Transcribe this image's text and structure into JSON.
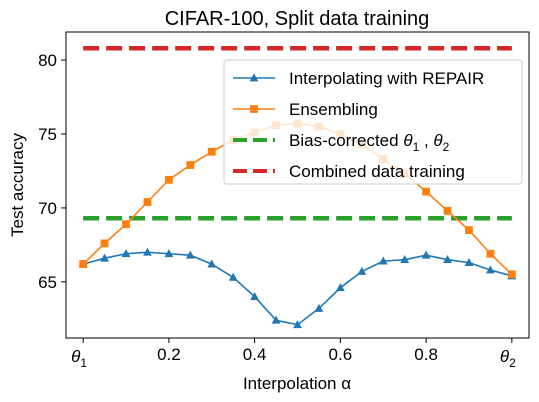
{
  "chart_data": {
    "type": "line",
    "title": "CIFAR-100, Split data training",
    "xlabel": "Interpolation α",
    "ylabel": "Test accuracy",
    "xlim": [
      -0.04,
      1.04
    ],
    "ylim": [
      61.2,
      81.9
    ],
    "xticks": [
      {
        "value": 0,
        "label": "θ",
        "sub": "1"
      },
      {
        "value": 0.2,
        "label": "0.2"
      },
      {
        "value": 0.4,
        "label": "0.4"
      },
      {
        "value": 0.6,
        "label": "0.6"
      },
      {
        "value": 0.8,
        "label": "0.8"
      },
      {
        "value": 1.0,
        "label": "θ",
        "sub": "2"
      }
    ],
    "yticks": [
      65,
      70,
      75,
      80
    ],
    "x": [
      0,
      0.05,
      0.1,
      0.15,
      0.2,
      0.25,
      0.3,
      0.35,
      0.4,
      0.45,
      0.5,
      0.55,
      0.6,
      0.65,
      0.7,
      0.75,
      0.8,
      0.85,
      0.9,
      0.95,
      1.0
    ],
    "series": [
      {
        "name": "Interpolating with REPAIR",
        "color": "#1f77b4",
        "marker": "triangle",
        "style": "solid",
        "values": [
          66.2,
          66.6,
          66.9,
          67.0,
          66.9,
          66.8,
          66.2,
          65.3,
          64.0,
          62.4,
          62.1,
          63.2,
          64.6,
          65.7,
          66.4,
          66.5,
          66.8,
          66.5,
          66.3,
          65.8,
          65.4
        ]
      },
      {
        "name": "Ensembling",
        "color": "#ff7f0e",
        "marker": "square",
        "style": "solid",
        "values": [
          66.2,
          67.6,
          68.9,
          70.4,
          71.9,
          72.9,
          73.8,
          74.6,
          75.1,
          75.6,
          75.7,
          75.5,
          75.0,
          74.3,
          73.3,
          72.3,
          71.1,
          69.8,
          68.5,
          66.9,
          65.5
        ]
      },
      {
        "name": "Bias-corrected θ₁ , θ₂",
        "legend_parts": [
          "Bias-corrected ",
          "θ",
          "1",
          " , ",
          "θ",
          "2"
        ],
        "color": "#2ca02c",
        "style": "dashed",
        "value": 69.3
      },
      {
        "name": "Combined data training",
        "color": "#d62728",
        "style": "dashed",
        "value": 80.8
      }
    ],
    "legend_position": "upper right",
    "grid": false
  }
}
